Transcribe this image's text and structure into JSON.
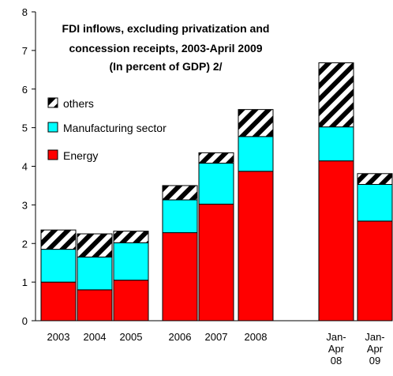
{
  "chart_data": {
    "type": "bar",
    "stacked": true,
    "title_lines": [
      "FDI inflows, excluding privatization and",
      "concession receipts, 2003-April 2009",
      "(In percent of GDP) 2/"
    ],
    "categories": [
      {
        "lines": [
          "2003"
        ]
      },
      {
        "lines": [
          "2004"
        ]
      },
      {
        "lines": [
          "2005"
        ]
      },
      {
        "lines": [
          "2006"
        ]
      },
      {
        "lines": [
          "2007"
        ]
      },
      {
        "lines": [
          "2008"
        ]
      },
      {
        "lines": [
          "Jan-",
          "Apr",
          "08"
        ]
      },
      {
        "lines": [
          "Jan-",
          "Apr",
          "09"
        ]
      }
    ],
    "series": [
      {
        "name": "Energy",
        "color": "#ff0000",
        "pattern": "solid",
        "values": [
          1.0,
          0.8,
          1.05,
          2.28,
          3.02,
          3.87,
          4.14,
          2.58
        ]
      },
      {
        "name": "Manufacturing sector",
        "color": "#00ffff",
        "pattern": "solid",
        "values": [
          0.85,
          0.85,
          0.97,
          0.85,
          1.06,
          0.9,
          0.88,
          0.95
        ]
      },
      {
        "name": "others",
        "color": "#000000",
        "pattern": "diagonal-stripes",
        "values": [
          0.5,
          0.6,
          0.3,
          0.37,
          0.27,
          0.7,
          1.66,
          0.28
        ]
      }
    ],
    "legend_order": [
      "others",
      "Manufacturing sector",
      "Energy"
    ],
    "legend_position": "left",
    "ylim": [
      0,
      8
    ],
    "yticks": [
      0,
      1,
      2,
      3,
      4,
      5,
      6,
      7,
      8
    ],
    "grid": false
  }
}
